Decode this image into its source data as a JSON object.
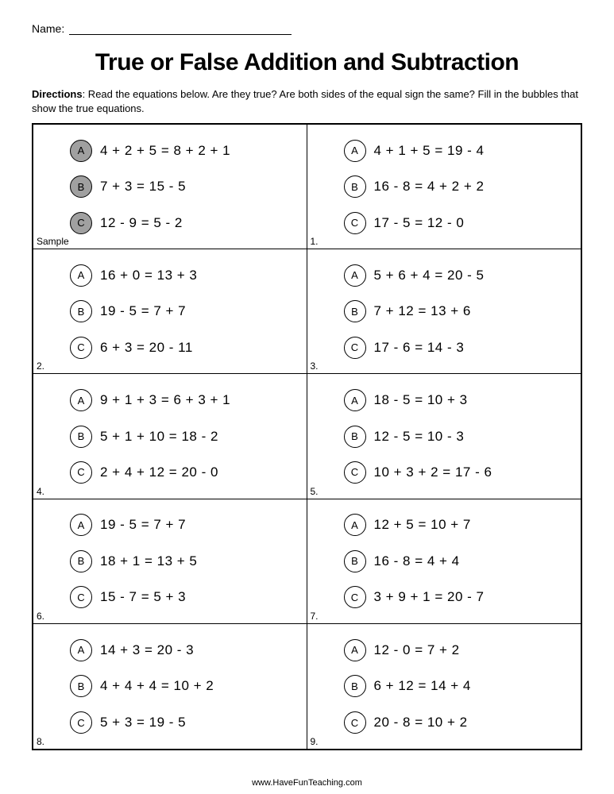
{
  "name_label": "Name:",
  "title": "True or False Addition and Subtraction",
  "directions_label": "Directions",
  "directions_text": ": Read the equations below. Are they true? Are both sides of the equal sign the same? Fill in the bubbles that show the true equations.",
  "footer": "www.HaveFunTeaching.com",
  "bubble_fill_color": "#a0a0a0",
  "border_color": "#000000",
  "cells": [
    {
      "label": "Sample",
      "items": [
        {
          "letter": "A",
          "equation": "4 + 2 + 5 = 8 + 2 + 1",
          "filled": true
        },
        {
          "letter": "B",
          "equation": "7 + 3 = 15 - 5",
          "filled": true
        },
        {
          "letter": "C",
          "equation": "12 - 9 = 5 - 2",
          "filled": true
        }
      ]
    },
    {
      "label": "1.",
      "items": [
        {
          "letter": "A",
          "equation": "4 + 1 + 5 = 19 - 4",
          "filled": false
        },
        {
          "letter": "B",
          "equation": "16 - 8 = 4 + 2 + 2",
          "filled": false
        },
        {
          "letter": "C",
          "equation": "17 - 5 = 12 - 0",
          "filled": false
        }
      ]
    },
    {
      "label": "2.",
      "items": [
        {
          "letter": "A",
          "equation": "16 + 0 = 13 + 3",
          "filled": false
        },
        {
          "letter": "B",
          "equation": "19 - 5 = 7 + 7",
          "filled": false
        },
        {
          "letter": "C",
          "equation": "6 + 3 = 20 - 11",
          "filled": false
        }
      ]
    },
    {
      "label": "3.",
      "items": [
        {
          "letter": "A",
          "equation": "5 + 6 + 4 = 20 - 5",
          "filled": false
        },
        {
          "letter": "B",
          "equation": "7 + 12 = 13 + 6",
          "filled": false
        },
        {
          "letter": "C",
          "equation": "17 - 6 = 14 - 3",
          "filled": false
        }
      ]
    },
    {
      "label": "4.",
      "items": [
        {
          "letter": "A",
          "equation": "9 + 1 + 3 = 6 + 3 + 1",
          "filled": false
        },
        {
          "letter": "B",
          "equation": "5 + 1 + 10 = 18 - 2",
          "filled": false
        },
        {
          "letter": "C",
          "equation": "2 + 4 + 12 = 20 - 0",
          "filled": false
        }
      ]
    },
    {
      "label": "5.",
      "items": [
        {
          "letter": "A",
          "equation": "18 - 5 = 10 + 3",
          "filled": false
        },
        {
          "letter": "B",
          "equation": "12 - 5 = 10 - 3",
          "filled": false
        },
        {
          "letter": "C",
          "equation": "10 + 3 + 2 = 17 - 6",
          "filled": false
        }
      ]
    },
    {
      "label": "6.",
      "items": [
        {
          "letter": "A",
          "equation": "19 - 5 = 7 + 7",
          "filled": false
        },
        {
          "letter": "B",
          "equation": "18 + 1 = 13 + 5",
          "filled": false
        },
        {
          "letter": "C",
          "equation": "15 - 7 = 5 + 3",
          "filled": false
        }
      ]
    },
    {
      "label": "7.",
      "items": [
        {
          "letter": "A",
          "equation": "12 + 5 = 10 + 7",
          "filled": false
        },
        {
          "letter": "B",
          "equation": "16 - 8 = 4 + 4",
          "filled": false
        },
        {
          "letter": "C",
          "equation": "3 + 9 + 1 = 20 - 7",
          "filled": false
        }
      ]
    },
    {
      "label": "8.",
      "items": [
        {
          "letter": "A",
          "equation": "14 + 3 = 20 - 3",
          "filled": false
        },
        {
          "letter": "B",
          "equation": "4 + 4 + 4 = 10 + 2",
          "filled": false
        },
        {
          "letter": "C",
          "equation": "5 + 3 = 19 - 5",
          "filled": false
        }
      ]
    },
    {
      "label": "9.",
      "items": [
        {
          "letter": "A",
          "equation": "12 - 0 = 7 + 2",
          "filled": false
        },
        {
          "letter": "B",
          "equation": "6 + 12 = 14 + 4",
          "filled": false
        },
        {
          "letter": "C",
          "equation": "20 - 8 = 10 + 2",
          "filled": false
        }
      ]
    }
  ]
}
